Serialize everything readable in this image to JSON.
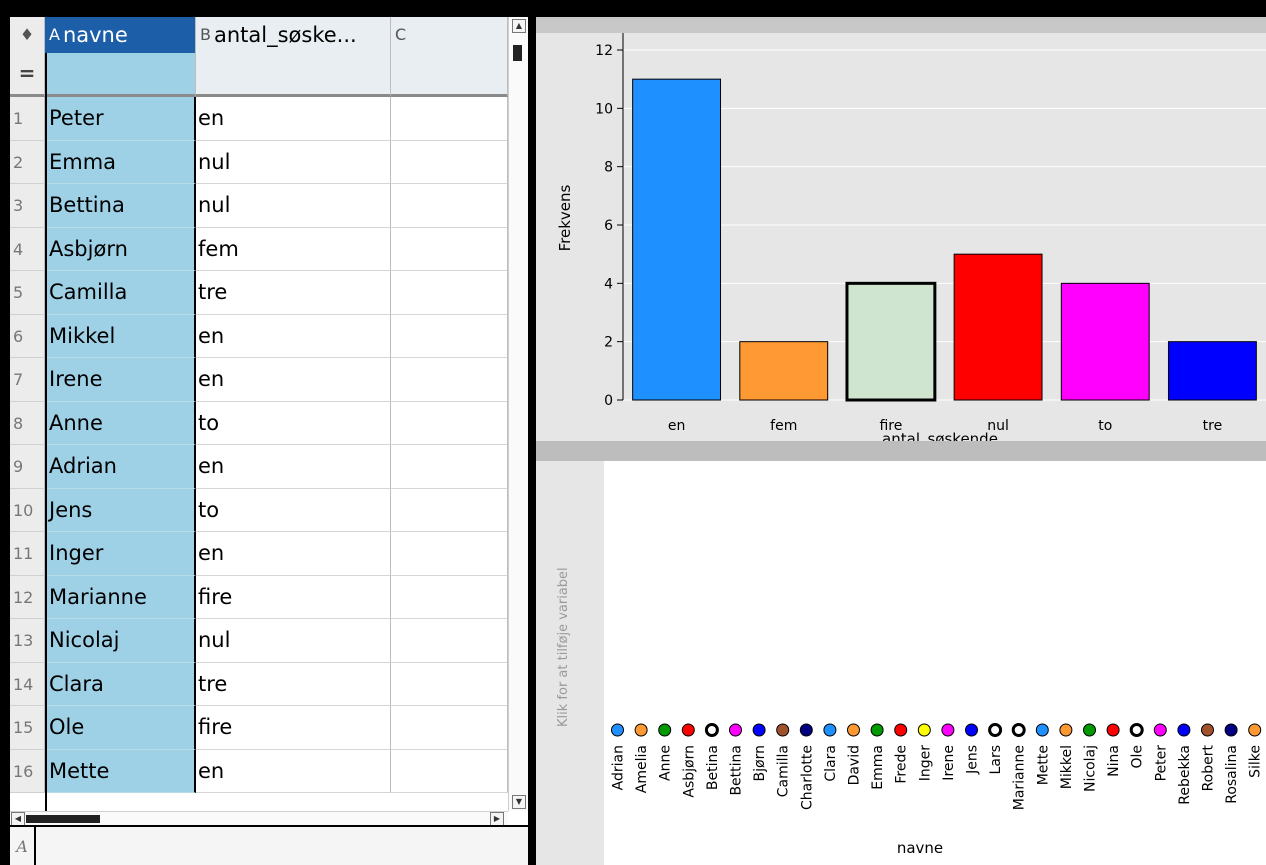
{
  "spreadsheet": {
    "columns": [
      {
        "letter": "A",
        "name": "navne"
      },
      {
        "letter": "B",
        "name": "antal_søske..."
      },
      {
        "letter": "C",
        "name": ""
      }
    ],
    "formula_row_label": "=",
    "entry_label": "A",
    "entry_value": "",
    "rows": [
      {
        "index": "1",
        "navne": "Peter",
        "antal": "en"
      },
      {
        "index": "2",
        "navne": "Emma",
        "antal": "nul"
      },
      {
        "index": "3",
        "navne": "Bettina",
        "antal": "nul"
      },
      {
        "index": "4",
        "navne": "Asbjørn",
        "antal": "fem"
      },
      {
        "index": "5",
        "navne": "Camilla",
        "antal": "tre"
      },
      {
        "index": "6",
        "navne": "Mikkel",
        "antal": "en"
      },
      {
        "index": "7",
        "navne": "Irene",
        "antal": "en"
      },
      {
        "index": "8",
        "navne": "Anne",
        "antal": "to"
      },
      {
        "index": "9",
        "navne": "Adrian",
        "antal": "en"
      },
      {
        "index": "10",
        "navne": "Jens",
        "antal": "to"
      },
      {
        "index": "11",
        "navne": "Inger",
        "antal": "en"
      },
      {
        "index": "12",
        "navne": "Marianne",
        "antal": "fire"
      },
      {
        "index": "13",
        "navne": "Nicolaj",
        "antal": "nul"
      },
      {
        "index": "14",
        "navne": "Clara",
        "antal": "tre"
      },
      {
        "index": "15",
        "navne": "Ole",
        "antal": "fire"
      },
      {
        "index": "16",
        "navne": "Mette",
        "antal": "en"
      }
    ]
  },
  "dot_plot": {
    "add_variable_hint": "Klik for at tilføje variabel",
    "xlabel": "navne"
  },
  "chart_data": [
    {
      "type": "bar",
      "categories": [
        "en",
        "fem",
        "fire",
        "nul",
        "to",
        "tre"
      ],
      "values": [
        11,
        2,
        4,
        5,
        4,
        2
      ],
      "colors": [
        "#1e90ff",
        "#ff9933",
        "#cfe5cf",
        "#ff0000",
        "#ff00ff",
        "#0000ff"
      ],
      "selected_category": "fire",
      "xlabel": "antal_søskende",
      "ylabel": "Frekvens",
      "ylim": [
        0,
        12
      ],
      "yticks": [
        0,
        2,
        4,
        6,
        8,
        10,
        12
      ],
      "grid": true
    },
    {
      "type": "scatter",
      "categories": [
        "Adrian",
        "Amelia",
        "Anne",
        "Asbjørn",
        "Betina",
        "Bettina",
        "Bjørn",
        "Camilla",
        "Charlotte",
        "Clara",
        "David",
        "Emma",
        "Frede",
        "Inger",
        "Irene",
        "Jens",
        "Lars",
        "Marianne",
        "Mette",
        "Mikkel",
        "Nicolaj",
        "Nina",
        "Ole",
        "Peter",
        "Rebekka",
        "Robert",
        "Rosalina",
        "Silke"
      ],
      "values": [
        1,
        1,
        1,
        1,
        1,
        1,
        1,
        1,
        1,
        1,
        1,
        1,
        1,
        1,
        1,
        1,
        1,
        1,
        1,
        1,
        1,
        1,
        1,
        1,
        1,
        1,
        1,
        1
      ],
      "colors": [
        "#1e90ff",
        "#ff9933",
        "#009900",
        "#ff0000",
        "#ffffff",
        "#ff00ff",
        "#0000ff",
        "#a0522d",
        "#000080",
        "#1e90ff",
        "#ff9933",
        "#009900",
        "#ff0000",
        "#ffff00",
        "#ff00ff",
        "#0000ff",
        "#ffffff",
        "#ffffff",
        "#1e90ff",
        "#ff9933",
        "#009900",
        "#ff0000",
        "#ffffff",
        "#ff00ff",
        "#0000ff",
        "#a0522d",
        "#000080",
        "#ff9933"
      ],
      "bold_outline": [
        "Betina",
        "Lars",
        "Marianne",
        "Ole"
      ],
      "xlabel": "navne"
    }
  ]
}
